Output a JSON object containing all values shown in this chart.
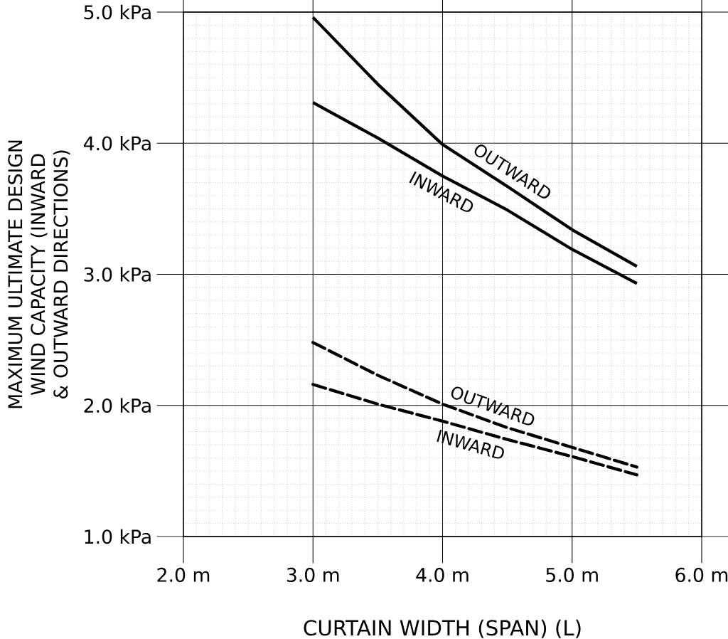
{
  "chart_data": {
    "type": "line",
    "xlabel": "CURTAIN WIDTH (SPAN) (L)",
    "ylabel": "MAXIMUM ULTIMATE DESIGN WIND CAPACITY (INWARD & OUTWARD DIRECTIONS)",
    "x": [
      3.0,
      3.5,
      4.0,
      4.5,
      5.0,
      5.5
    ],
    "series": [
      {
        "name": "OUTWARD",
        "color": "#000000",
        "line_style": "solid",
        "values": [
          4.96,
          4.45,
          3.99,
          3.67,
          3.34,
          3.06
        ]
      },
      {
        "name": "INWARD",
        "color": "#000000",
        "line_style": "solid",
        "values": [
          4.31,
          4.04,
          3.75,
          3.49,
          3.19,
          2.93
        ]
      },
      {
        "name": "OUTWARD",
        "color": "#000000",
        "line_style": "dashed",
        "values": [
          2.48,
          2.23,
          2.01,
          1.83,
          1.68,
          1.53
        ]
      },
      {
        "name": "INWARD",
        "color": "#000000",
        "line_style": "dashed",
        "values": [
          2.16,
          2.01,
          1.88,
          1.74,
          1.61,
          1.47
        ]
      }
    ],
    "xlim": [
      2.0,
      6.0
    ],
    "ylim": [
      1.0,
      5.0
    ],
    "xticks": [
      {
        "value": 2.0,
        "label": "2.0 m"
      },
      {
        "value": 3.0,
        "label": "3.0 m"
      },
      {
        "value": 4.0,
        "label": "4.0 m"
      },
      {
        "value": 5.0,
        "label": "5.0 m"
      },
      {
        "value": 6.0,
        "label": "6.0 m"
      }
    ],
    "yticks": [
      {
        "value": 1.0,
        "label": "1.0 kPa"
      },
      {
        "value": 2.0,
        "label": "2.0 kPa"
      },
      {
        "value": 3.0,
        "label": "3.0 kPa"
      },
      {
        "value": 4.0,
        "label": "4.0 kPa"
      },
      {
        "value": 5.0,
        "label": "5.0 kPa"
      }
    ],
    "grid": true,
    "marker": "none"
  }
}
